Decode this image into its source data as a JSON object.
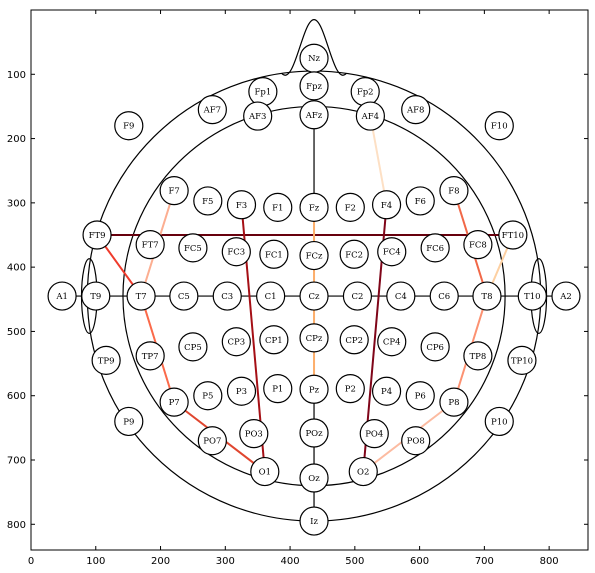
{
  "axes": {
    "xlim": [
      0,
      860
    ],
    "ylim": [
      840,
      0
    ],
    "x_ticks": [
      0,
      100,
      200,
      300,
      400,
      500,
      600,
      700,
      800
    ],
    "y_ticks": [
      100,
      200,
      300,
      400,
      500,
      600,
      700,
      800
    ],
    "x_tick_labels": [
      "0",
      "100",
      "200",
      "300",
      "400",
      "500",
      "600",
      "700",
      "800"
    ],
    "y_tick_labels": [
      "100",
      "200",
      "300",
      "400",
      "500",
      "600",
      "700",
      "800"
    ],
    "grid": false
  },
  "head_outline": {
    "center": [
      437,
      445
    ],
    "radius": 350,
    "inner_radius": 295,
    "nose_tip": [
      437,
      15
    ],
    "nose_base_x": [
      387,
      487
    ],
    "left_ear": {
      "center": [
        90,
        445
      ],
      "rx": 12,
      "ry": 58
    },
    "right_ear": {
      "center": [
        784,
        445
      ],
      "rx": 12,
      "ry": 58
    },
    "midline_x": 437,
    "midline_y": 350
  },
  "electrodes": [
    {
      "label": "Nz",
      "x": 437,
      "y": 75
    },
    {
      "label": "Fpz",
      "x": 437,
      "y": 118
    },
    {
      "label": "Fp1",
      "x": 358,
      "y": 127
    },
    {
      "label": "Fp2",
      "x": 516,
      "y": 127
    },
    {
      "label": "AF7",
      "x": 280,
      "y": 155
    },
    {
      "label": "AF3",
      "x": 350,
      "y": 165
    },
    {
      "label": "AFz",
      "x": 437,
      "y": 163
    },
    {
      "label": "AF4",
      "x": 524,
      "y": 165
    },
    {
      "label": "AF8",
      "x": 594,
      "y": 155
    },
    {
      "label": "F9",
      "x": 151,
      "y": 180
    },
    {
      "label": "F10",
      "x": 723,
      "y": 180
    },
    {
      "label": "F7",
      "x": 221,
      "y": 281
    },
    {
      "label": "F5",
      "x": 273,
      "y": 297
    },
    {
      "label": "F3",
      "x": 325,
      "y": 303
    },
    {
      "label": "F1",
      "x": 381,
      "y": 307
    },
    {
      "label": "Fz",
      "x": 437,
      "y": 307
    },
    {
      "label": "F2",
      "x": 493,
      "y": 307
    },
    {
      "label": "F4",
      "x": 549,
      "y": 303
    },
    {
      "label": "F6",
      "x": 601,
      "y": 297
    },
    {
      "label": "F8",
      "x": 653,
      "y": 281
    },
    {
      "label": "FT9",
      "x": 102,
      "y": 350
    },
    {
      "label": "FT7",
      "x": 184,
      "y": 365
    },
    {
      "label": "FC5",
      "x": 250,
      "y": 370
    },
    {
      "label": "FC3",
      "x": 317,
      "y": 376
    },
    {
      "label": "FC1",
      "x": 375,
      "y": 380
    },
    {
      "label": "FCz",
      "x": 437,
      "y": 382
    },
    {
      "label": "FC2",
      "x": 499,
      "y": 380
    },
    {
      "label": "FC4",
      "x": 557,
      "y": 376
    },
    {
      "label": "FC6",
      "x": 624,
      "y": 370
    },
    {
      "label": "FC8",
      "x": 690,
      "y": 365
    },
    {
      "label": "FT10",
      "x": 744,
      "y": 350
    },
    {
      "label": "A1",
      "x": 48,
      "y": 445
    },
    {
      "label": "T9",
      "x": 100,
      "y": 445
    },
    {
      "label": "T7",
      "x": 170,
      "y": 445
    },
    {
      "label": "C5",
      "x": 236,
      "y": 445
    },
    {
      "label": "C3",
      "x": 303,
      "y": 445
    },
    {
      "label": "C1",
      "x": 370,
      "y": 445
    },
    {
      "label": "Cz",
      "x": 437,
      "y": 445
    },
    {
      "label": "C2",
      "x": 504,
      "y": 445
    },
    {
      "label": "C4",
      "x": 571,
      "y": 445
    },
    {
      "label": "C6",
      "x": 638,
      "y": 445
    },
    {
      "label": "T8",
      "x": 704,
      "y": 445
    },
    {
      "label": "T10",
      "x": 774,
      "y": 445
    },
    {
      "label": "A2",
      "x": 826,
      "y": 445
    },
    {
      "label": "TP9",
      "x": 116,
      "y": 545
    },
    {
      "label": "TP7",
      "x": 184,
      "y": 538
    },
    {
      "label": "CP5",
      "x": 250,
      "y": 524
    },
    {
      "label": "CP3",
      "x": 317,
      "y": 516
    },
    {
      "label": "CP1",
      "x": 375,
      "y": 513
    },
    {
      "label": "CPz",
      "x": 437,
      "y": 510
    },
    {
      "label": "CP2",
      "x": 499,
      "y": 513
    },
    {
      "label": "CP4",
      "x": 557,
      "y": 516
    },
    {
      "label": "CP6",
      "x": 624,
      "y": 524
    },
    {
      "label": "TP8",
      "x": 690,
      "y": 538
    },
    {
      "label": "TP10",
      "x": 758,
      "y": 545
    },
    {
      "label": "P5",
      "x": 273,
      "y": 600
    },
    {
      "label": "P3",
      "x": 325,
      "y": 593
    },
    {
      "label": "P1",
      "x": 381,
      "y": 589
    },
    {
      "label": "Pz",
      "x": 437,
      "y": 590
    },
    {
      "label": "P2",
      "x": 493,
      "y": 589
    },
    {
      "label": "P4",
      "x": 549,
      "y": 593
    },
    {
      "label": "P6",
      "x": 601,
      "y": 600
    },
    {
      "label": "P7",
      "x": 221,
      "y": 610
    },
    {
      "label": "P8",
      "x": 653,
      "y": 610
    },
    {
      "label": "P9",
      "x": 151,
      "y": 640
    },
    {
      "label": "P10",
      "x": 723,
      "y": 640
    },
    {
      "label": "PO7",
      "x": 280,
      "y": 670
    },
    {
      "label": "PO3",
      "x": 344,
      "y": 659
    },
    {
      "label": "POz",
      "x": 437,
      "y": 658
    },
    {
      "label": "PO4",
      "x": 530,
      "y": 659
    },
    {
      "label": "PO8",
      "x": 594,
      "y": 670
    },
    {
      "label": "O1",
      "x": 361,
      "y": 718
    },
    {
      "label": "Oz",
      "x": 437,
      "y": 728
    },
    {
      "label": "O2",
      "x": 513,
      "y": 718
    },
    {
      "label": "Iz",
      "x": 437,
      "y": 795
    }
  ],
  "connections": [
    {
      "from": "FT9",
      "to": "FT10",
      "color": "#67000d"
    },
    {
      "from": "F3",
      "to": "O1",
      "color": "#a50f15"
    },
    {
      "from": "F4",
      "to": "O2",
      "color": "#7f0519"
    },
    {
      "from": "FT9",
      "to": "T7",
      "color": "#ef3b2c"
    },
    {
      "from": "T7",
      "to": "P7",
      "color": "#fb6a4a"
    },
    {
      "from": "P7",
      "to": "O1",
      "color": "#e0462f"
    },
    {
      "from": "F7",
      "to": "T7",
      "color": "#fcae91"
    },
    {
      "from": "F8",
      "to": "T8",
      "color": "#f16848"
    },
    {
      "from": "T8",
      "to": "P8",
      "color": "#fc9272"
    },
    {
      "from": "FT10",
      "to": "T8",
      "color": "#fdd0a2"
    },
    {
      "from": "P8",
      "to": "O2",
      "color": "#fcbba1"
    },
    {
      "from": "Fz",
      "to": "Pz",
      "color": "#fdae6b"
    },
    {
      "from": "Fp2",
      "to": "AF4",
      "color": "#fee6ce"
    },
    {
      "from": "AF4",
      "to": "F4",
      "color": "#fde0c5"
    }
  ]
}
